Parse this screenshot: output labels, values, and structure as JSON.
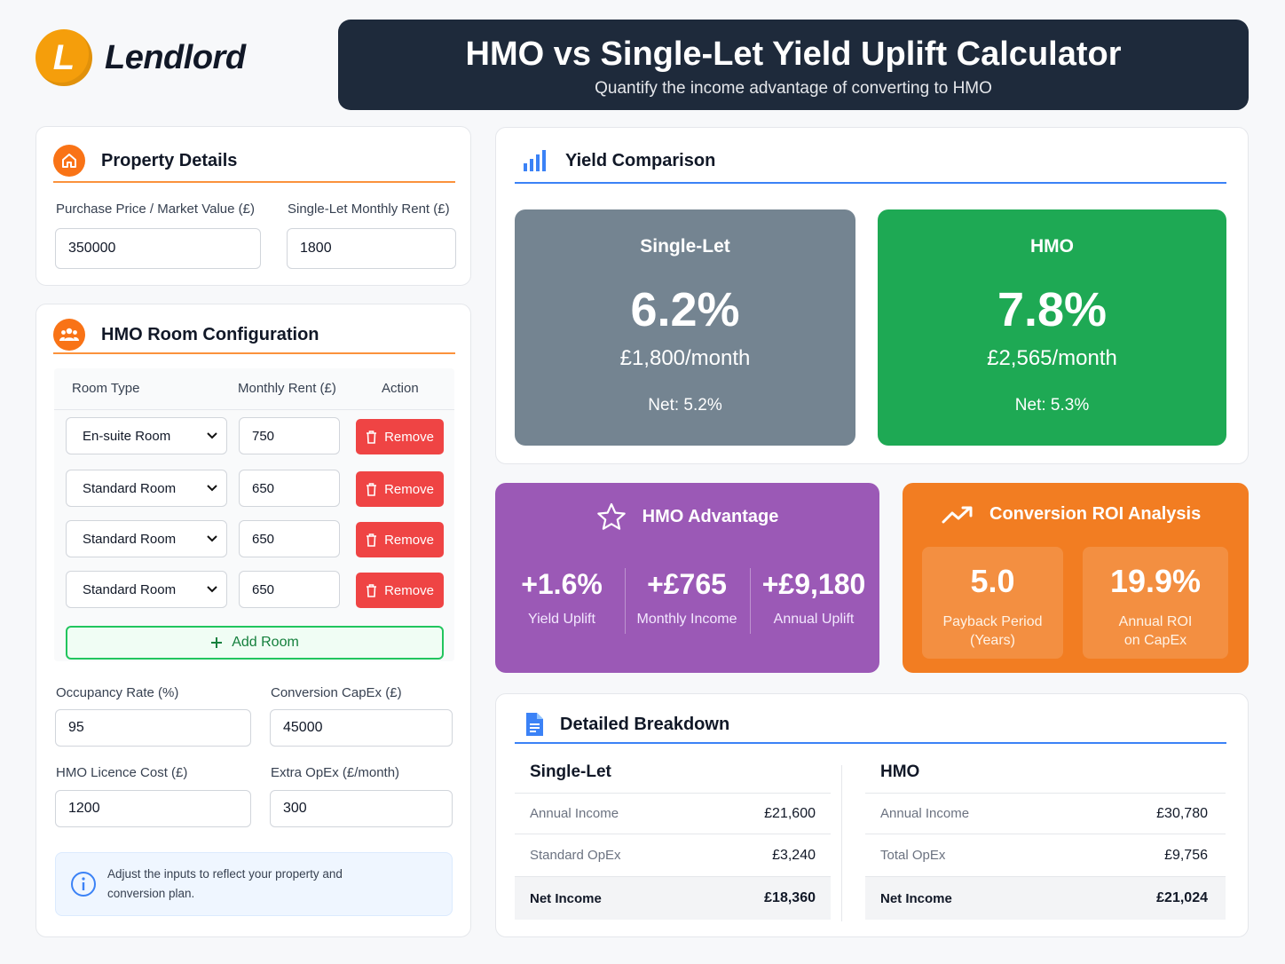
{
  "brand": {
    "name": "Lendlord",
    "mark": "L"
  },
  "header": {
    "title": "HMO vs Single-Let Yield Uplift Calculator",
    "subtitle": "Quantify the income advantage of converting to HMO"
  },
  "property": {
    "title": "Property Details",
    "purchase_label": "Purchase Price / Market Value (£)",
    "purchase_value": "350000",
    "rent_label": "Single-Let Monthly Rent (£)",
    "rent_value": "1800"
  },
  "rooms": {
    "title": "HMO Room Configuration",
    "col_type": "Room Type",
    "col_rent": "Monthly Rent (£)",
    "col_action": "Action",
    "remove_label": "Remove",
    "add_label": "Add Room",
    "items": [
      {
        "type": "En-suite Room",
        "rent": "750"
      },
      {
        "type": "Standard Room",
        "rent": "650"
      },
      {
        "type": "Standard Room",
        "rent": "650"
      },
      {
        "type": "Standard Room",
        "rent": "650"
      }
    ],
    "occupancy_label": "Occupancy Rate (%)",
    "occupancy_value": "95",
    "capex_label": "Conversion CapEx (£)",
    "capex_value": "45000",
    "licence_label": "HMO Licence Cost (£)",
    "licence_value": "1200",
    "opex_label": "Extra OpEx (£/month)",
    "opex_value": "300",
    "info_text": "Adjust the inputs to reflect your property and conversion plan."
  },
  "yield": {
    "title": "Yield Comparison",
    "single": {
      "label": "Single-Let",
      "value": "6.2%",
      "monthly": "£1,800/month",
      "net": "Net: 5.2%"
    },
    "hmo": {
      "label": "HMO",
      "value": "7.8%",
      "monthly": "£2,565/month",
      "net": "Net: 5.3%"
    }
  },
  "advantage": {
    "title": "HMO Advantage",
    "items": [
      {
        "value": "+1.6%",
        "label": "Yield Uplift"
      },
      {
        "value": "+£765",
        "label": "Monthly Income"
      },
      {
        "value": "+£9,180",
        "label": "Annual Uplift"
      }
    ]
  },
  "roi": {
    "title": "Conversion ROI Analysis",
    "payback_value": "5.0",
    "payback_label_1": "Payback Period",
    "payback_label_2": "(Years)",
    "annual_value": "19.9%",
    "annual_label_1": "Annual ROI",
    "annual_label_2": "on CapEx"
  },
  "breakdown": {
    "title": "Detailed Breakdown",
    "single": {
      "title": "Single-Let",
      "rows": [
        {
          "k": "Annual Income",
          "v": "£21,600"
        },
        {
          "k": "Standard OpEx",
          "v": "£3,240"
        }
      ],
      "net": {
        "k": "Net Income",
        "v": "£18,360"
      }
    },
    "hmo": {
      "title": "HMO",
      "rows": [
        {
          "k": "Annual Income",
          "v": "£30,780"
        },
        {
          "k": "Total OpEx",
          "v": "£9,756"
        }
      ],
      "net": {
        "k": "Net Income",
        "v": "£21,024"
      }
    }
  },
  "colors": {
    "accent": "#f97316",
    "navy": "#1e2a3b",
    "green": "#16a34a",
    "purple": "#9b59b6",
    "slate": "#748491",
    "danger": "#ef4444"
  }
}
